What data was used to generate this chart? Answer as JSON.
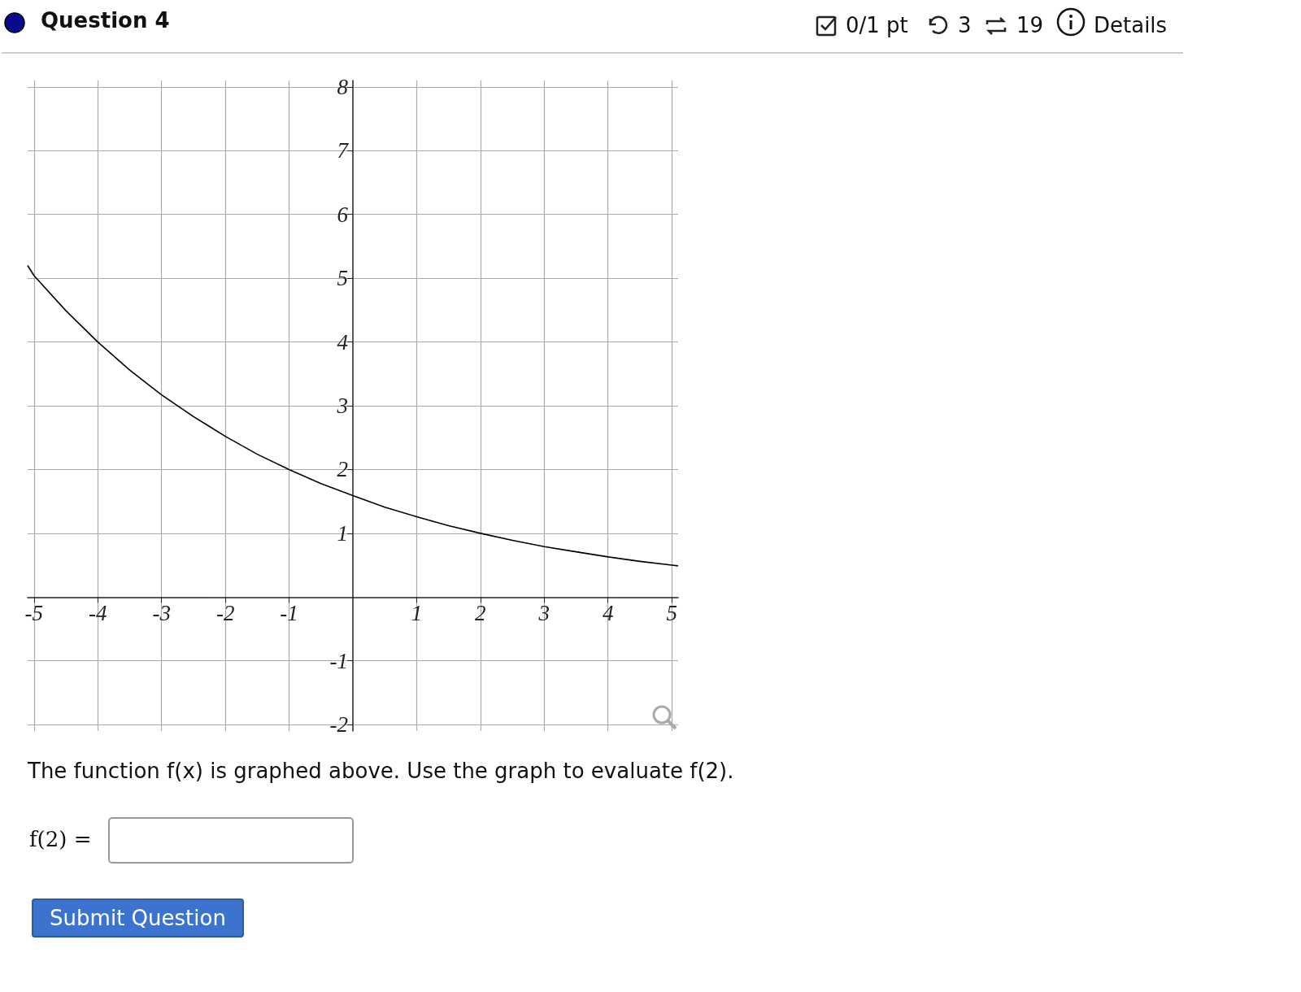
{
  "chart_data": {
    "type": "line",
    "title": "Question 4",
    "x": [
      -5.1,
      -5,
      -4.5,
      -4,
      -3.5,
      -3,
      -2.5,
      -2,
      -1.5,
      -1,
      -0.5,
      0,
      0.5,
      1,
      1.5,
      2,
      2.5,
      3,
      3.5,
      4,
      4.5,
      5,
      5.1
    ],
    "series": [
      {
        "color": "#000000",
        "values": [
          5.2,
          5.04,
          4.49,
          4,
          3.56,
          3.17,
          2.83,
          2.52,
          2.24,
          2,
          1.78,
          1.59,
          1.41,
          1.26,
          1.12,
          1,
          0.89,
          0.79,
          0.71,
          0.63,
          0.56,
          0.5,
          0.49
        ]
      }
    ],
    "xlim": [
      -5.1,
      5.1
    ],
    "ylim": [
      -2.1,
      8.1
    ],
    "xticks": [
      -5,
      -4,
      -3,
      -2,
      -1,
      1,
      2,
      3,
      4,
      5
    ],
    "yticks": [
      -2,
      -1,
      1,
      2,
      3,
      4,
      5,
      6,
      7,
      8
    ],
    "grid": true,
    "marker": "none",
    "line_style": "solid",
    "annotations": [
      "0/1 pt",
      "3",
      "19",
      "Details",
      "The function f(x) is graphed above. Use the graph to evaluate f(2).",
      "f(2) =",
      "Submit Question"
    ]
  }
}
